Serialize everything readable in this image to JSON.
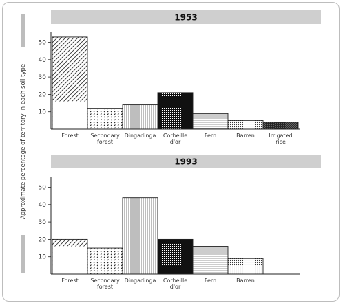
{
  "chart_data": {
    "type": "bar",
    "ylabel": "Approximate percentage of territory in each soil type",
    "yticks": [
      10,
      20,
      30,
      40,
      50
    ],
    "ylim": [
      0,
      56
    ],
    "panels": [
      {
        "title": "1953",
        "categories": [
          "Forest",
          "Secondary forest",
          "Dingadinga",
          "Corbeille d'or",
          "Fern",
          "Barren",
          "Irrigated rice"
        ],
        "category_lines": [
          [
            "Forest"
          ],
          [
            "Secondary",
            "forest"
          ],
          [
            "Dingadinga"
          ],
          [
            "Corbeille",
            "d'or"
          ],
          [
            "Fern"
          ],
          [
            "Barren"
          ],
          [
            "Irrigated",
            "rice"
          ]
        ],
        "values": [
          53,
          12,
          14,
          21,
          9,
          5,
          4
        ],
        "hatched_base": [
          16,
          null,
          null,
          null,
          null,
          null,
          null
        ],
        "patterns": [
          "diag",
          "dots",
          "vert",
          "cross",
          "horiz",
          "finedots",
          "dense"
        ]
      },
      {
        "title": "1993",
        "categories": [
          "Forest",
          "Secondary forest",
          "Dingadinga",
          "Corbeille d'or",
          "Fern",
          "Barren"
        ],
        "category_lines": [
          [
            "Forest"
          ],
          [
            "Secondary",
            "forest"
          ],
          [
            "Dingadinga"
          ],
          [
            "Corbeille",
            "d'or"
          ],
          [
            "Fern"
          ],
          [
            "Barren"
          ]
        ],
        "values": [
          20,
          15,
          44,
          20,
          16,
          9
        ],
        "hatched_base": [
          16,
          null,
          null,
          null,
          null,
          null
        ],
        "patterns": [
          "diag",
          "dots",
          "vert",
          "cross",
          "horiz",
          "finedots"
        ]
      }
    ]
  }
}
